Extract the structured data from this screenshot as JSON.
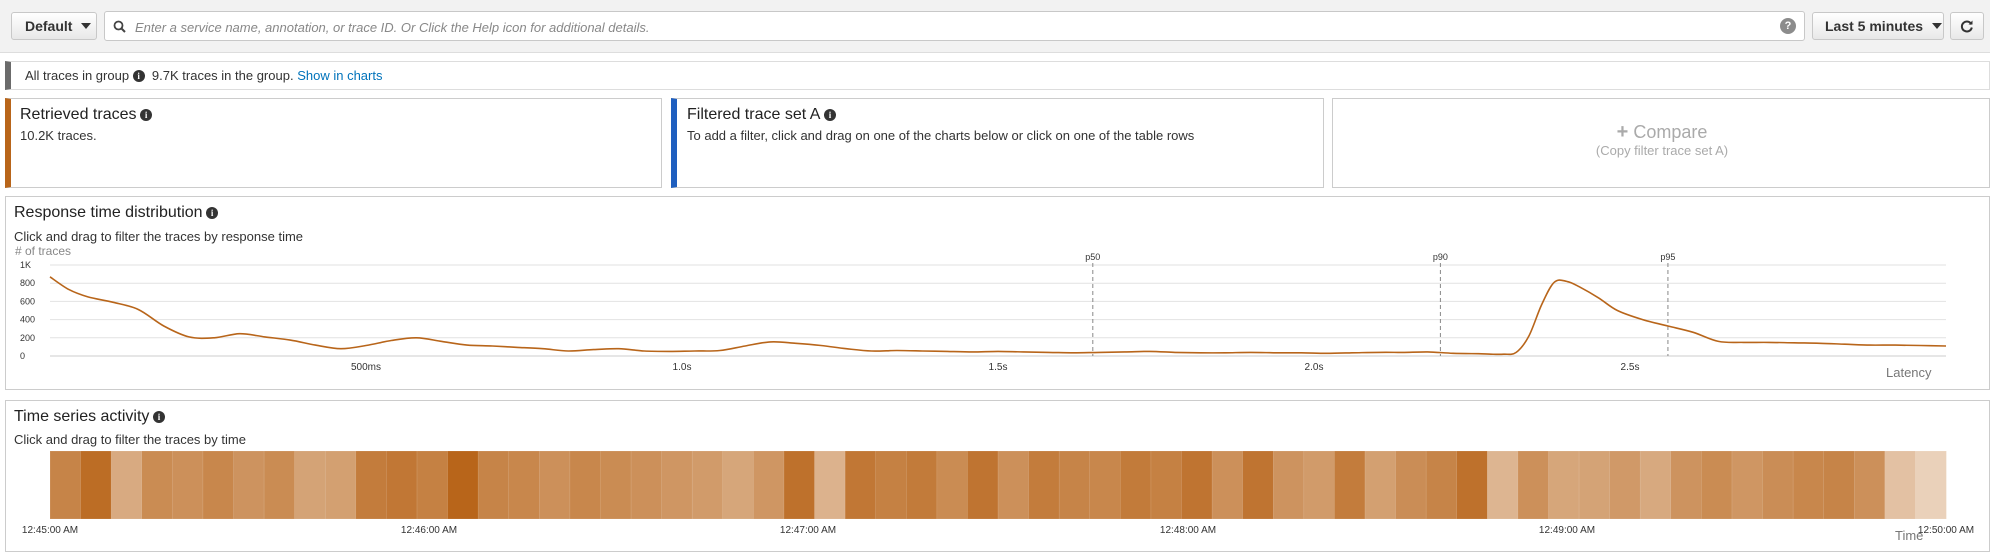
{
  "toolbar": {
    "group_label": "Default",
    "search_placeholder": "Enter a service name, annotation, or trace ID. Or Click the Help icon for additional details.",
    "search_value": "",
    "time_range_label": "Last 5 minutes"
  },
  "group_bar": {
    "label": "All traces in group",
    "count_text": "9.7K traces in the group.",
    "link": "Show in charts"
  },
  "cards": {
    "retrieved": {
      "title": "Retrieved traces",
      "subtitle": "10.2K traces.",
      "accent": "#b8651a"
    },
    "filtered": {
      "title": "Filtered trace set A",
      "subtitle": "To add a filter, click and drag on one of the charts below or click on one of the table rows",
      "accent": "#1f5fbf"
    },
    "compare": {
      "title": "Compare",
      "subtitle": "(Copy filter trace set A)"
    }
  },
  "response_panel": {
    "title": "Response time distribution",
    "subtitle": "Click and drag to filter the traces by response time"
  },
  "timeseries_panel": {
    "title": "Time series activity",
    "subtitle": "Click and drag to filter the traces by time"
  },
  "chart_data": [
    {
      "type": "line",
      "ylabel": "# of traces",
      "xlabel": "Latency",
      "y_ticks": [
        "1K",
        "800",
        "600",
        "400",
        "200",
        "0"
      ],
      "x_ticks": [
        "500ms",
        "1.0s",
        "1.5s",
        "2.0s",
        "2.5s"
      ],
      "xlim": [
        0.0,
        3.0
      ],
      "ylim": [
        0,
        1000
      ],
      "markers": [
        {
          "label": "p50",
          "x": 1.65
        },
        {
          "label": "p90",
          "x": 2.2
        },
        {
          "label": "p95",
          "x": 2.56
        }
      ],
      "color": "#b8651a",
      "points": [
        [
          0.0,
          870
        ],
        [
          0.03,
          730
        ],
        [
          0.06,
          650
        ],
        [
          0.1,
          590
        ],
        [
          0.14,
          510
        ],
        [
          0.18,
          330
        ],
        [
          0.22,
          210
        ],
        [
          0.26,
          200
        ],
        [
          0.3,
          245
        ],
        [
          0.34,
          210
        ],
        [
          0.38,
          175
        ],
        [
          0.42,
          120
        ],
        [
          0.46,
          80
        ],
        [
          0.5,
          115
        ],
        [
          0.54,
          170
        ],
        [
          0.58,
          200
        ],
        [
          0.62,
          160
        ],
        [
          0.66,
          120
        ],
        [
          0.7,
          110
        ],
        [
          0.74,
          95
        ],
        [
          0.78,
          80
        ],
        [
          0.82,
          55
        ],
        [
          0.86,
          70
        ],
        [
          0.9,
          80
        ],
        [
          0.94,
          55
        ],
        [
          0.98,
          50
        ],
        [
          1.02,
          55
        ],
        [
          1.06,
          60
        ],
        [
          1.1,
          110
        ],
        [
          1.14,
          155
        ],
        [
          1.18,
          140
        ],
        [
          1.22,
          115
        ],
        [
          1.26,
          80
        ],
        [
          1.3,
          55
        ],
        [
          1.34,
          60
        ],
        [
          1.38,
          55
        ],
        [
          1.42,
          50
        ],
        [
          1.46,
          45
        ],
        [
          1.5,
          50
        ],
        [
          1.54,
          45
        ],
        [
          1.58,
          40
        ],
        [
          1.62,
          35
        ],
        [
          1.66,
          40
        ],
        [
          1.7,
          45
        ],
        [
          1.74,
          50
        ],
        [
          1.78,
          40
        ],
        [
          1.82,
          35
        ],
        [
          1.86,
          35
        ],
        [
          1.9,
          40
        ],
        [
          1.94,
          35
        ],
        [
          1.98,
          35
        ],
        [
          2.02,
          30
        ],
        [
          2.06,
          35
        ],
        [
          2.1,
          40
        ],
        [
          2.14,
          40
        ],
        [
          2.18,
          45
        ],
        [
          2.22,
          30
        ],
        [
          2.26,
          25
        ],
        [
          2.28,
          20
        ],
        [
          2.3,
          20
        ],
        [
          2.32,
          40
        ],
        [
          2.34,
          220
        ],
        [
          2.36,
          560
        ],
        [
          2.38,
          810
        ],
        [
          2.4,
          820
        ],
        [
          2.42,
          760
        ],
        [
          2.45,
          640
        ],
        [
          2.48,
          500
        ],
        [
          2.52,
          400
        ],
        [
          2.56,
          330
        ],
        [
          2.6,
          260
        ],
        [
          2.64,
          160
        ],
        [
          2.68,
          150
        ],
        [
          2.72,
          150
        ],
        [
          2.76,
          145
        ],
        [
          2.8,
          140
        ],
        [
          2.84,
          130
        ],
        [
          2.88,
          120
        ],
        [
          2.92,
          120
        ],
        [
          2.96,
          115
        ],
        [
          3.0,
          110
        ]
      ]
    },
    {
      "type": "heatmap",
      "xlabel": "Time",
      "x_ticks": [
        "12:45:00 AM",
        "12:46:00 AM",
        "12:47:00 AM",
        "12:48:00 AM",
        "12:49:00 AM",
        "12:50:00 AM"
      ],
      "base_color": "#b8651a",
      "intensities": [
        0.8,
        0.95,
        0.55,
        0.75,
        0.72,
        0.78,
        0.7,
        0.75,
        0.6,
        0.62,
        0.85,
        0.88,
        0.82,
        1.0,
        0.8,
        0.78,
        0.72,
        0.78,
        0.75,
        0.72,
        0.68,
        0.65,
        0.58,
        0.68,
        0.92,
        0.5,
        0.88,
        0.82,
        0.86,
        0.75,
        0.9,
        0.72,
        0.85,
        0.8,
        0.78,
        0.86,
        0.82,
        0.9,
        0.72,
        0.9,
        0.7,
        0.65,
        0.85,
        0.62,
        0.74,
        0.8,
        0.92,
        0.48,
        0.72,
        0.58,
        0.6,
        0.66,
        0.56,
        0.7,
        0.75,
        0.68,
        0.74,
        0.78,
        0.8,
        0.72,
        0.4,
        0.3
      ]
    }
  ]
}
